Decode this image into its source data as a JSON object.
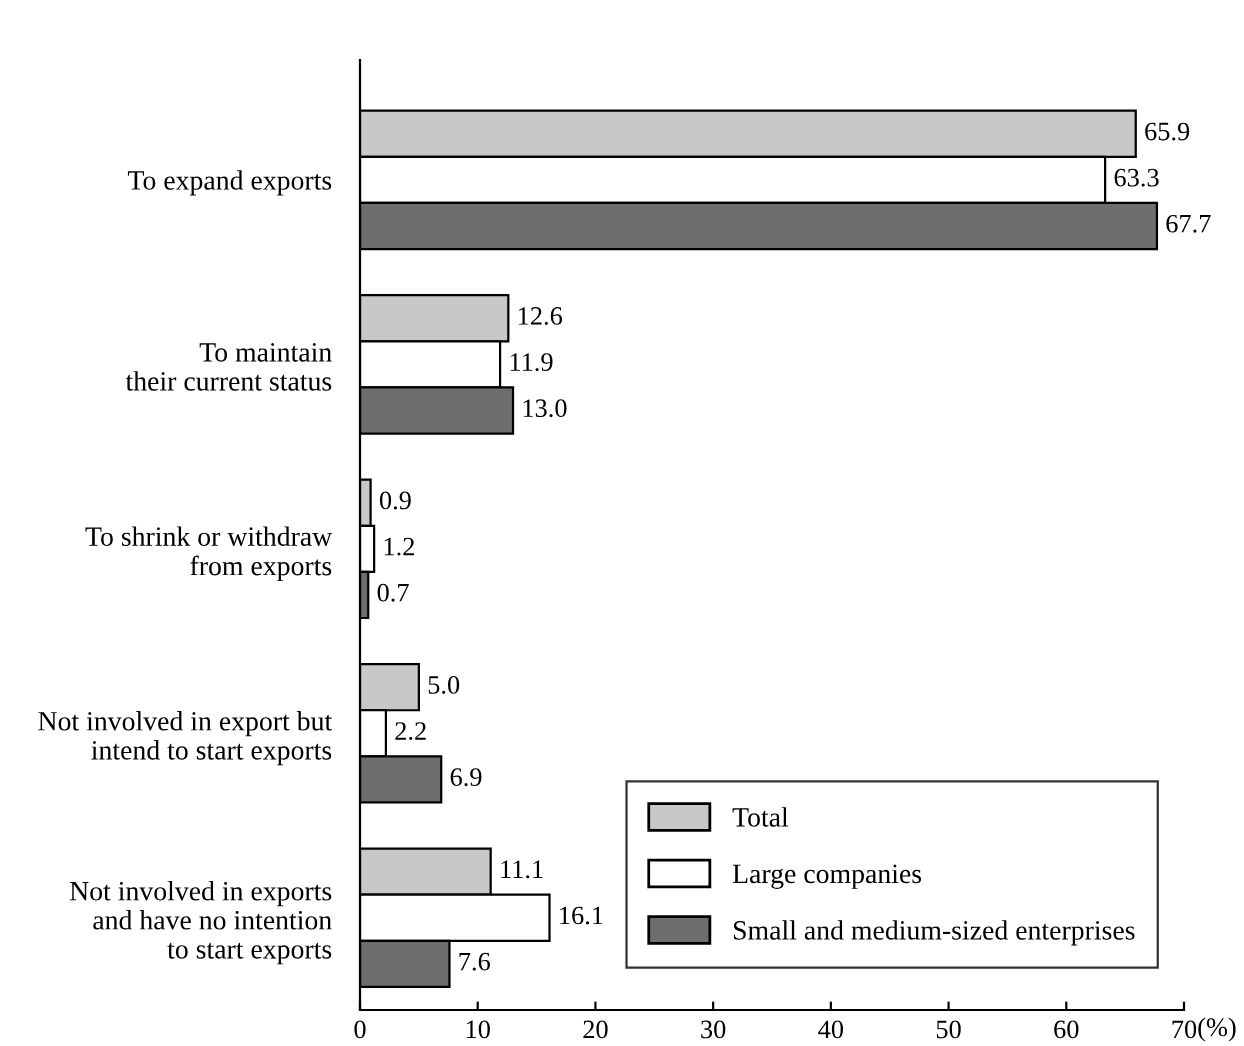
{
  "chart_data": {
    "type": "bar",
    "orientation": "horizontal",
    "xlabel": "(%)",
    "categories": [
      "To expand exports",
      "To maintain\ntheir current status",
      "To shrink or withdraw\nfrom exports",
      "Not involved in export but\nintend to start exports",
      "Not involved in exports\nand have no intention\nto start exports"
    ],
    "series": [
      {
        "name": "Total",
        "color": "#c8c8c8",
        "values": [
          65.9,
          12.6,
          0.9,
          5.0,
          11.1
        ]
      },
      {
        "name": "Large companies",
        "color": "#ffffff",
        "values": [
          63.3,
          11.9,
          1.2,
          2.2,
          16.1
        ]
      },
      {
        "name": "Small and medium-sized enterprises",
        "color": "#6e6e6e",
        "values": [
          67.7,
          13.0,
          0.7,
          6.9,
          7.6
        ]
      }
    ],
    "value_labels": [
      [
        "65.9",
        "12.6",
        "0.9",
        "5.0",
        "11.1"
      ],
      [
        "63.3",
        "11.9",
        "1.2",
        "2.2",
        "16.1"
      ],
      [
        "67.7",
        "13.0",
        "0.7",
        "6.9",
        "7.6"
      ]
    ],
    "xlim": [
      0,
      70
    ],
    "xticks": [
      0,
      10,
      20,
      30,
      40,
      50,
      60,
      70
    ],
    "grid": false,
    "legend": "bottom right"
  }
}
